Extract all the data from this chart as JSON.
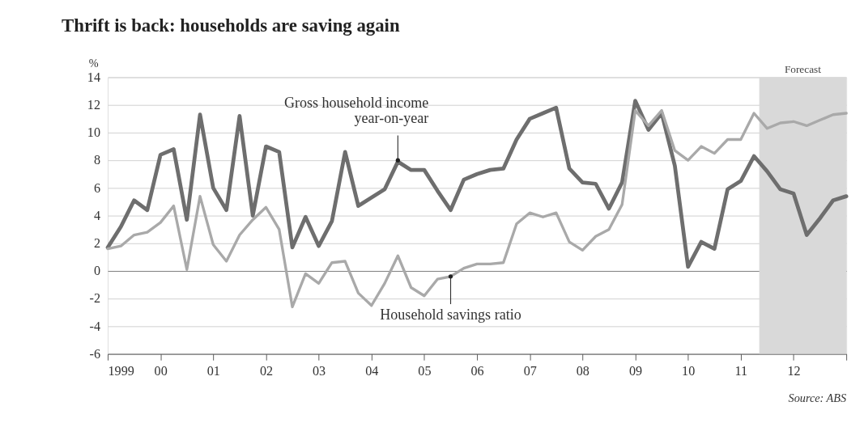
{
  "chart_data": {
    "type": "line",
    "title": "Thrift is back: households are saving again",
    "ylabel": "%",
    "x": [
      1999,
      1999.25,
      1999.5,
      1999.75,
      2000,
      2000.25,
      2000.5,
      2000.75,
      2001,
      2001.25,
      2001.5,
      2001.75,
      2002,
      2002.25,
      2002.5,
      2002.75,
      2003,
      2003.25,
      2003.5,
      2003.75,
      2004,
      2004.25,
      2004.5,
      2004.75,
      2005,
      2005.25,
      2005.5,
      2005.75,
      2006,
      2006.25,
      2006.5,
      2006.75,
      2007,
      2007.25,
      2007.5,
      2007.75,
      2008,
      2008.25,
      2008.5,
      2008.75,
      2009,
      2009.25,
      2009.5,
      2009.75,
      2010,
      2010.25,
      2010.5,
      2010.75,
      2011,
      2011.25,
      2011.5,
      2011.75,
      2012,
      2012.25,
      2012.5,
      2012.75,
      2013
    ],
    "series": [
      {
        "color": "#6e6e6e",
        "values": [
          1.7,
          3.2,
          5.1,
          4.4,
          8.4,
          8.8,
          3.7,
          11.3,
          6.0,
          4.4,
          11.2,
          4.0,
          9.0,
          8.6,
          1.7,
          3.9,
          1.8,
          3.6,
          8.6,
          4.7,
          5.3,
          5.9,
          7.9,
          7.3,
          7.3,
          5.8,
          4.4,
          6.6,
          7.0,
          7.3,
          7.4,
          9.5,
          11.0,
          11.4,
          11.8,
          7.4,
          6.4,
          6.3,
          4.5,
          6.4,
          12.3,
          10.2,
          11.4,
          7.6,
          0.3,
          2.1,
          1.6,
          5.9,
          6.5,
          8.3,
          7.2,
          5.9,
          5.6,
          2.6,
          3.8,
          5.1,
          5.4
        ]
      },
      {
        "color": "#a9a9a9",
        "values": [
          1.6,
          1.8,
          2.6,
          2.8,
          3.5,
          4.7,
          0.1,
          5.4,
          1.9,
          0.7,
          2.6,
          3.7,
          4.6,
          3.0,
          -2.6,
          -0.2,
          -0.9,
          0.6,
          0.7,
          -1.6,
          -2.5,
          -0.9,
          1.1,
          -1.2,
          -1.8,
          -0.6,
          -0.4,
          0.2,
          0.5,
          0.5,
          0.6,
          3.4,
          4.2,
          3.9,
          4.2,
          2.1,
          1.5,
          2.5,
          3.0,
          4.8,
          11.6,
          10.5,
          11.6,
          8.7,
          8.0,
          9.0,
          8.5,
          9.5,
          9.5,
          11.4,
          10.3,
          10.7,
          10.8,
          10.5,
          10.9,
          11.3,
          11.4
        ]
      }
    ],
    "xlim": [
      1999,
      2013
    ],
    "xticks": [
      1999,
      {
        "value": 2000,
        "label": "00"
      },
      {
        "value": 2001,
        "label": "01"
      },
      {
        "value": 2002,
        "label": "02"
      },
      {
        "value": 2003,
        "label": "03"
      },
      {
        "value": 2004,
        "label": "04"
      },
      {
        "value": 2005,
        "label": "05"
      },
      {
        "value": 2006,
        "label": "06"
      },
      {
        "value": 2007,
        "label": "07"
      },
      {
        "value": 2008,
        "label": "08"
      },
      {
        "value": 2009,
        "label": "09"
      },
      {
        "value": 2010,
        "label": "10"
      },
      {
        "value": 2011,
        "label": "11"
      },
      {
        "value": 2012,
        "label": "12"
      },
      {
        "value": 2013,
        "label": null
      }
    ],
    "ylim": [
      -6,
      14
    ],
    "yticks": [
      -6,
      -4,
      -2,
      0,
      2,
      4,
      6,
      8,
      10,
      12,
      14
    ],
    "grid": "y",
    "legend": false,
    "marker": "none",
    "line_style": "solid",
    "bands": [
      {
        "axis": "x",
        "from": 2011.35,
        "to": 2013,
        "label": "Forecast",
        "color": "#d9d9d9"
      }
    ],
    "annotations": [
      {
        "text": "Gross household income\nyear-on-year",
        "x": 2004.5,
        "y": 8
      },
      {
        "text": "Household savings ratio",
        "x": 2005.5,
        "y": -0.4
      },
      "Source: ABS"
    ]
  }
}
